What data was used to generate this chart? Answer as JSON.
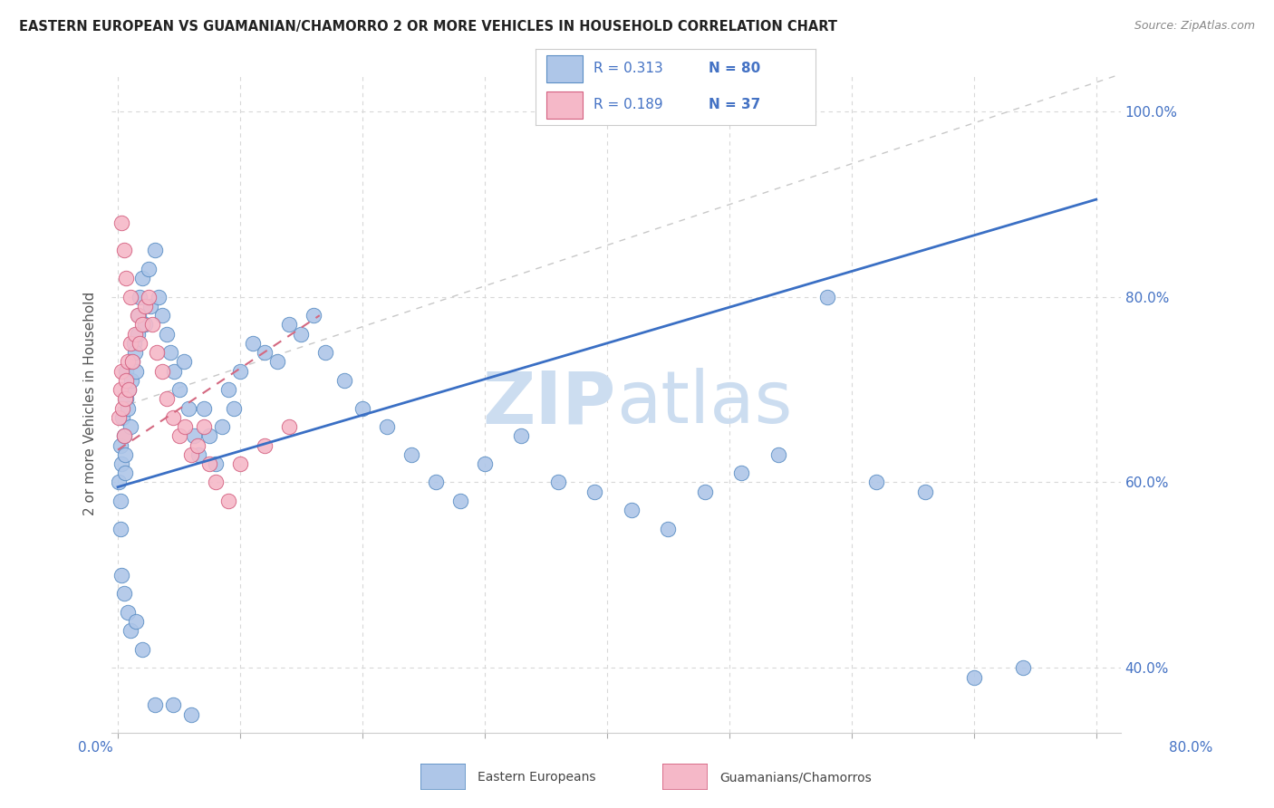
{
  "title": "EASTERN EUROPEAN VS GUAMANIAN/CHAMORRO 2 OR MORE VEHICLES IN HOUSEHOLD CORRELATION CHART",
  "source": "Source: ZipAtlas.com",
  "ylabel_text": "2 or more Vehicles in Household",
  "xmin": -0.005,
  "xmax": 0.82,
  "ymin": 0.33,
  "ymax": 1.04,
  "yticks": [
    0.4,
    0.6,
    0.8,
    1.0
  ],
  "ytick_labels": [
    "40.0%",
    "60.0%",
    "80.0%",
    "100.0%"
  ],
  "blue_color": "#aec6e8",
  "blue_edge_color": "#5b8ec4",
  "pink_color": "#f5b8c8",
  "pink_edge_color": "#d46080",
  "blue_line_color": "#3a6fc4",
  "pink_line_color": "#d46880",
  "gray_line_color": "#c8c8c8",
  "legend_R_color": "#4472c4",
  "legend_N_color": "#4472c4",
  "watermark_color": "#ccddf0",
  "blue_line_y0": 0.595,
  "blue_line_y1": 0.905,
  "pink_line_x0": 0.0,
  "pink_line_x1": 0.165,
  "pink_line_y0": 0.635,
  "pink_line_y1": 0.78,
  "gray_line_x0": 0.0,
  "gray_line_x1": 0.82,
  "gray_line_y0": 0.68,
  "gray_line_y1": 1.04,
  "blue_x": [
    0.001,
    0.002,
    0.002,
    0.003,
    0.004,
    0.005,
    0.006,
    0.006,
    0.007,
    0.007,
    0.008,
    0.009,
    0.01,
    0.011,
    0.012,
    0.013,
    0.014,
    0.015,
    0.016,
    0.017,
    0.018,
    0.02,
    0.022,
    0.025,
    0.027,
    0.03,
    0.033,
    0.036,
    0.04,
    0.043,
    0.046,
    0.05,
    0.054,
    0.058,
    0.062,
    0.066,
    0.07,
    0.075,
    0.08,
    0.085,
    0.09,
    0.095,
    0.1,
    0.11,
    0.12,
    0.13,
    0.14,
    0.15,
    0.16,
    0.17,
    0.185,
    0.2,
    0.22,
    0.24,
    0.26,
    0.28,
    0.3,
    0.33,
    0.36,
    0.39,
    0.42,
    0.45,
    0.48,
    0.51,
    0.54,
    0.58,
    0.62,
    0.66,
    0.7,
    0.74,
    0.002,
    0.003,
    0.005,
    0.008,
    0.01,
    0.015,
    0.02,
    0.03,
    0.045,
    0.06
  ],
  "blue_y": [
    0.6,
    0.64,
    0.58,
    0.62,
    0.67,
    0.65,
    0.61,
    0.63,
    0.69,
    0.72,
    0.68,
    0.7,
    0.66,
    0.71,
    0.73,
    0.75,
    0.74,
    0.72,
    0.76,
    0.78,
    0.8,
    0.82,
    0.77,
    0.83,
    0.79,
    0.85,
    0.8,
    0.78,
    0.76,
    0.74,
    0.72,
    0.7,
    0.73,
    0.68,
    0.65,
    0.63,
    0.68,
    0.65,
    0.62,
    0.66,
    0.7,
    0.68,
    0.72,
    0.75,
    0.74,
    0.73,
    0.77,
    0.76,
    0.78,
    0.74,
    0.71,
    0.68,
    0.66,
    0.63,
    0.6,
    0.58,
    0.62,
    0.65,
    0.6,
    0.59,
    0.57,
    0.55,
    0.59,
    0.61,
    0.63,
    0.8,
    0.6,
    0.59,
    0.39,
    0.4,
    0.55,
    0.5,
    0.48,
    0.46,
    0.44,
    0.45,
    0.42,
    0.36,
    0.36,
    0.35
  ],
  "pink_x": [
    0.001,
    0.002,
    0.003,
    0.004,
    0.005,
    0.006,
    0.007,
    0.008,
    0.009,
    0.01,
    0.012,
    0.014,
    0.016,
    0.018,
    0.02,
    0.022,
    0.025,
    0.028,
    0.032,
    0.036,
    0.04,
    0.045,
    0.05,
    0.055,
    0.06,
    0.065,
    0.07,
    0.075,
    0.08,
    0.09,
    0.1,
    0.12,
    0.14,
    0.003,
    0.005,
    0.007,
    0.01
  ],
  "pink_y": [
    0.67,
    0.7,
    0.72,
    0.68,
    0.65,
    0.69,
    0.71,
    0.73,
    0.7,
    0.75,
    0.73,
    0.76,
    0.78,
    0.75,
    0.77,
    0.79,
    0.8,
    0.77,
    0.74,
    0.72,
    0.69,
    0.67,
    0.65,
    0.66,
    0.63,
    0.64,
    0.66,
    0.62,
    0.6,
    0.58,
    0.62,
    0.64,
    0.66,
    0.88,
    0.85,
    0.82,
    0.8
  ],
  "xtick_positions": [
    0.0,
    0.1,
    0.2,
    0.3,
    0.4,
    0.5,
    0.6,
    0.7,
    0.8
  ]
}
